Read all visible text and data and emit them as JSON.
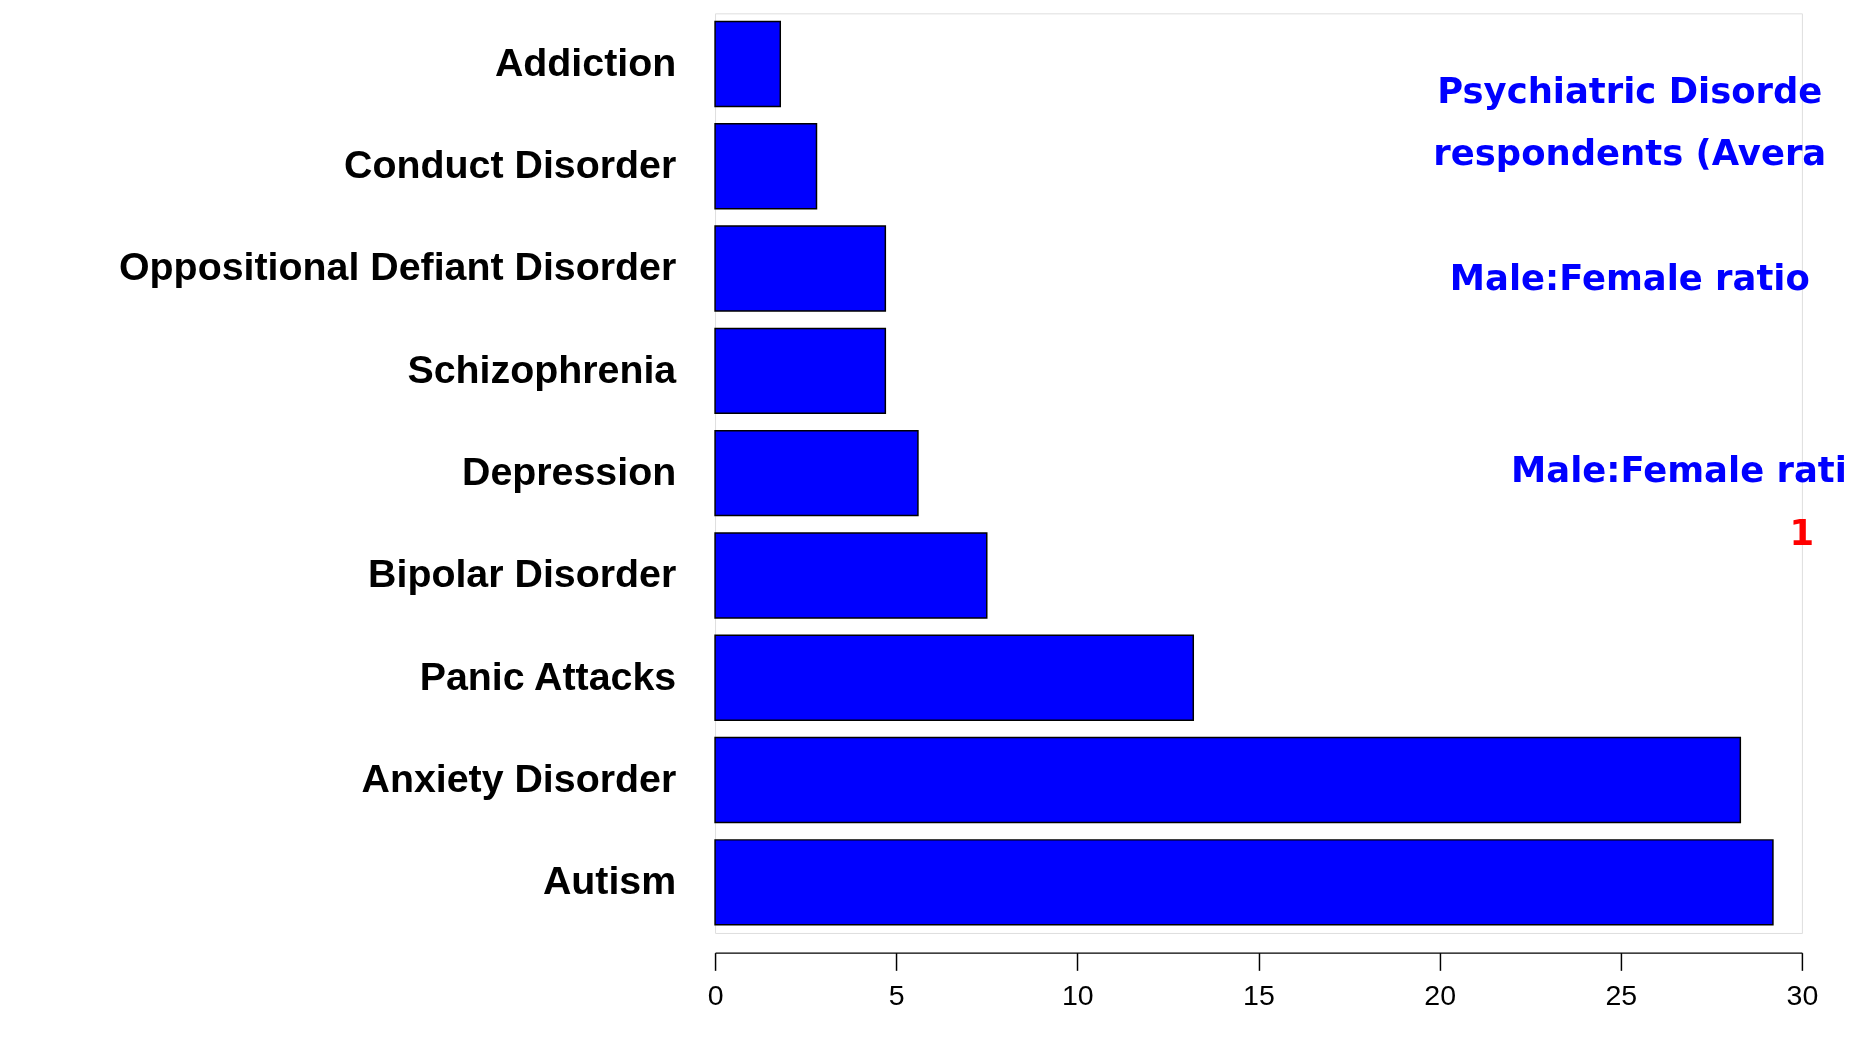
{
  "chart_data": {
    "type": "bar",
    "orientation": "horizontal",
    "categories": [
      "Addiction",
      "Conduct Disorder",
      "Oppositional Defiant Disorder",
      "Schizophrenia",
      "Depression",
      "Bipolar Disorder",
      "Panic Attacks",
      "Anxiety Disorder",
      "Autism"
    ],
    "values": [
      1.8,
      2.8,
      4.7,
      4.7,
      5.6,
      7.5,
      13.2,
      28.3,
      29.2
    ],
    "color": "#0000ff",
    "xlim": [
      0,
      30
    ],
    "xticks": [
      0,
      5,
      10,
      15,
      20,
      25,
      30
    ],
    "grid": false,
    "annotations": [
      "Psychiatric Disorde",
      "respondents (Avera",
      "Male:Female ratio",
      "Male:Female rati",
      "1"
    ]
  }
}
